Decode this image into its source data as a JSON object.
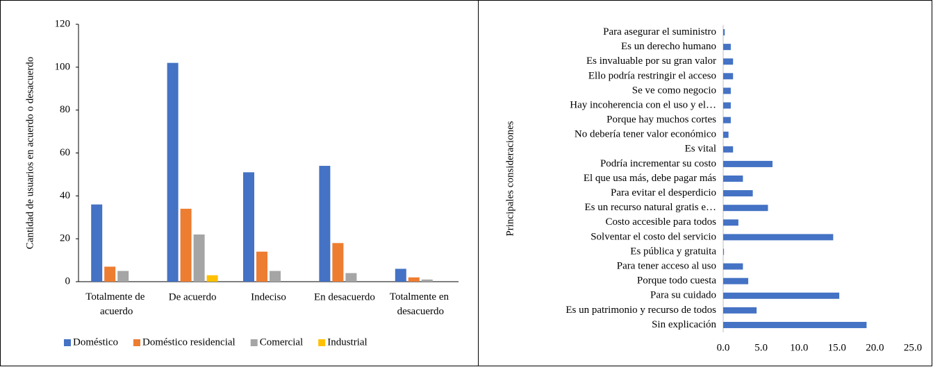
{
  "chart_data": [
    {
      "type": "bar",
      "orientation": "vertical",
      "y_label": "Cantidad de usuarios en acuerdo o desacuerdo",
      "categories": [
        "Totalmente de acuerdo",
        "De acuerdo",
        "Indeciso",
        "En desacuerdo",
        "Totalmente en desacuerdo"
      ],
      "series": [
        {
          "name": "Doméstico",
          "color": "#4472c4",
          "values": [
            36,
            102,
            51,
            54,
            6
          ]
        },
        {
          "name": "Doméstico residencial",
          "color": "#ed7d31",
          "values": [
            7,
            34,
            14,
            18,
            2
          ]
        },
        {
          "name": "Comercial",
          "color": "#a5a5a5",
          "values": [
            5,
            22,
            5,
            4,
            1
          ]
        },
        {
          "name": "Industrial",
          "color": "#ffc000",
          "values": [
            0,
            3,
            0,
            0,
            0
          ]
        }
      ],
      "ylim": [
        0,
        120
      ],
      "yticks": [
        0,
        20,
        40,
        60,
        80,
        100,
        120
      ],
      "grid": false,
      "legend": "bottom"
    },
    {
      "type": "bar",
      "orientation": "horizontal",
      "y_label": "Principales consideraciones",
      "categories": [
        "Para asegurar el suministro",
        "Es un derecho humano",
        "Es invaluable por su gran valor",
        "Ello podría restringir el acceso",
        "Se ve como negocio",
        "Hay incoherencia con el uso y el…",
        "Porque hay muchos cortes",
        "No debería tener valor económico",
        "Es vital",
        "Podría incrementar su costo",
        "El que usa más, debe pagar más",
        "Para evitar el desperdicio",
        "Es un recurso natural gratis e…",
        "Costo accesible para todos",
        "Solventar el costo del servicio",
        "Es pública y gratuita",
        "Para tener acceso al uso",
        "Porque todo cuesta",
        "Para su cuidado",
        "Es un patrimonio y recurso de todos",
        "Sin explicación"
      ],
      "values": [
        0.2,
        1.0,
        1.3,
        1.3,
        1.0,
        1.0,
        1.0,
        0.7,
        1.3,
        6.5,
        2.6,
        3.9,
        5.9,
        2.0,
        14.5,
        0.1,
        2.6,
        3.3,
        15.3,
        4.4,
        18.9
      ],
      "color": "#4472c4",
      "xlim": [
        0,
        25
      ],
      "xticks": [
        {
          "value": 0,
          "label": "0.0"
        },
        {
          "value": 5,
          "label": "5.0"
        },
        {
          "value": 10,
          "label": "10.0"
        },
        {
          "value": 15,
          "label": "15.0"
        },
        {
          "value": 20,
          "label": "20.0"
        },
        {
          "value": 25,
          "label": "25.0"
        }
      ],
      "grid": false
    }
  ]
}
